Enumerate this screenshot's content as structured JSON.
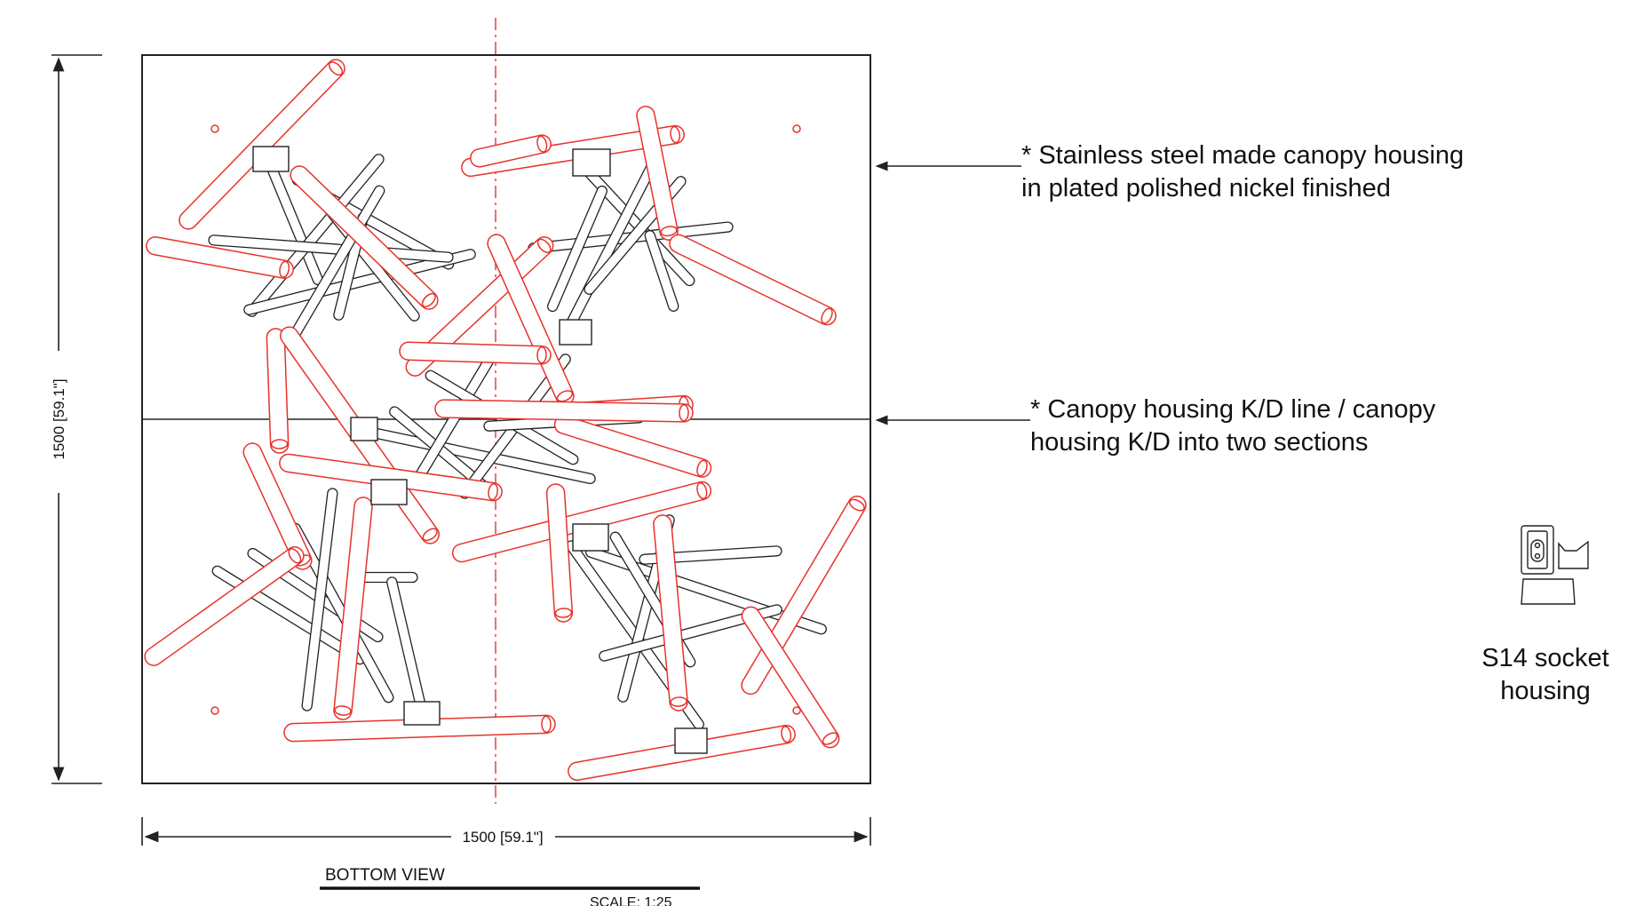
{
  "dimensions": {
    "vertical": "1500 [59.1\"]",
    "horizontal": "1500 [59.1\"]"
  },
  "view": {
    "title": "BOTTOM  VIEW",
    "scale": "SCALE: 1:25"
  },
  "notes": [
    {
      "line1": "* Stainless steel made canopy housing",
      "line2": "in plated polished nickel finished"
    },
    {
      "line1": "* Canopy housing K/D line / canopy",
      "line2": "housing K/D into two sections"
    }
  ],
  "socket": {
    "label_line1": "S14 socket",
    "label_line2": "housing"
  },
  "colors": {
    "line": "#222222",
    "tube_red": "#e8322c",
    "centerline_red": "#e8322c"
  }
}
